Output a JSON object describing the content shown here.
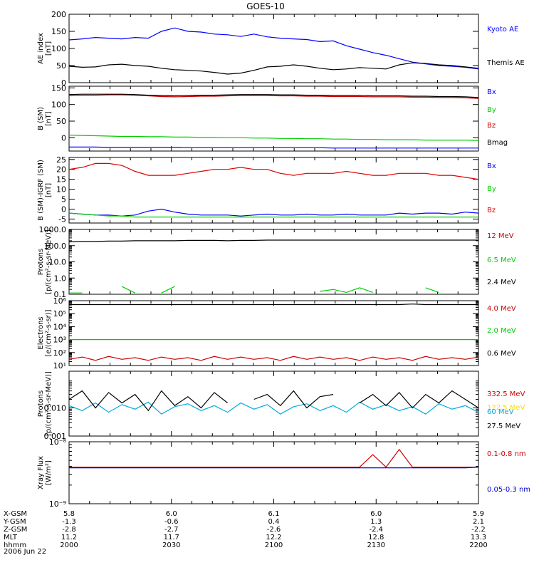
{
  "title": "GOES-10",
  "chart_data": [
    {
      "type": "line",
      "ylabel": [
        "AE index",
        "[nT]"
      ],
      "ylim": [
        0,
        200
      ],
      "ytick_values": [
        0,
        50,
        100,
        150,
        200
      ],
      "ytick_labels": [
        "0",
        "50",
        "100",
        "150",
        "200"
      ],
      "series": [
        {
          "name": "Kyoto AE",
          "color": "#0000ff",
          "values": [
            125,
            128,
            132,
            130,
            128,
            132,
            130,
            150,
            160,
            150,
            148,
            142,
            140,
            135,
            142,
            134,
            130,
            128,
            126,
            120,
            122,
            108,
            98,
            88,
            80,
            70,
            60,
            55,
            50,
            48,
            45,
            40
          ]
        },
        {
          "name": "Themis AE",
          "color": "#000000",
          "values": [
            48,
            45,
            46,
            52,
            54,
            50,
            48,
            42,
            38,
            36,
            34,
            30,
            25,
            28,
            36,
            46,
            48,
            52,
            48,
            42,
            38,
            40,
            44,
            42,
            40,
            52,
            58,
            56,
            52,
            50,
            46,
            42
          ]
        }
      ]
    },
    {
      "type": "line",
      "ylabel": [
        "B (SM)",
        "[nT]"
      ],
      "ylim": [
        -40,
        155
      ],
      "ytick_values": [
        0,
        50,
        100,
        150
      ],
      "ytick_labels": [
        "0",
        "50",
        "100",
        "150"
      ],
      "minor_ticks": [
        -25
      ],
      "series": [
        {
          "name": "Bx",
          "color": "#0000ff",
          "values": [
            -28,
            -28,
            -28,
            -29,
            -29,
            -29,
            -29,
            -29,
            -29,
            -30,
            -30,
            -30,
            -30,
            -30,
            -30,
            -30,
            -30,
            -30,
            -30,
            -30,
            -31,
            -31,
            -31,
            -31,
            -31,
            -31,
            -31,
            -31,
            -31,
            -31,
            -31,
            -31
          ]
        },
        {
          "name": "By",
          "color": "#00cc00",
          "values": [
            8,
            7,
            6,
            5,
            4,
            4,
            3,
            3,
            2,
            2,
            1,
            1,
            0,
            0,
            -1,
            -1,
            -2,
            -2,
            -3,
            -3,
            -4,
            -4,
            -5,
            -5,
            -6,
            -6,
            -6,
            -7,
            -7,
            -7,
            -7,
            -8
          ]
        },
        {
          "name": "Bz",
          "color": "#cc0000",
          "values": [
            127,
            128,
            128,
            129,
            129,
            128,
            126,
            124,
            123,
            124,
            125,
            125,
            126,
            127,
            127,
            127,
            126,
            126,
            125,
            125,
            124,
            124,
            124,
            123,
            123,
            123,
            122,
            122,
            121,
            121,
            120,
            118
          ]
        },
        {
          "name": "Bmag",
          "color": "#000000",
          "values": [
            130,
            131,
            131,
            131,
            131,
            130,
            128,
            127,
            126,
            127,
            128,
            128,
            129,
            130,
            130,
            130,
            129,
            129,
            128,
            128,
            127,
            127,
            127,
            126,
            126,
            126,
            125,
            125,
            124,
            124,
            123,
            121
          ]
        }
      ]
    },
    {
      "type": "line",
      "ylabel": [
        "B (SM)-IGRF (SM)",
        "[nT]"
      ],
      "ylim": [
        -7,
        26
      ],
      "ytick_values": [
        -5,
        0,
        5,
        10,
        15,
        20,
        25
      ],
      "ytick_labels": [
        "-5",
        "0",
        "5",
        "10",
        "15",
        "20",
        "25"
      ],
      "series": [
        {
          "name": "Bx",
          "color": "#0000ff",
          "values": [
            -2,
            -2.5,
            -3,
            -3,
            -3.5,
            -3,
            -1,
            0,
            -1.5,
            -2.5,
            -3,
            -3,
            -3,
            -3.5,
            -3,
            -2.5,
            -3,
            -3,
            -2.5,
            -3,
            -3,
            -2.5,
            -3,
            -3,
            -3,
            -2,
            -2.5,
            -2,
            -2,
            -2.5,
            -1.5,
            -2
          ]
        },
        {
          "name": "By",
          "color": "#00cc00",
          "values": [
            -2,
            -2.5,
            -3,
            -3.5,
            -3.5,
            -4,
            -4,
            -4,
            -4,
            -4,
            -4,
            -4,
            -4,
            -4,
            -4,
            -4,
            -4,
            -4,
            -4,
            -4,
            -4,
            -4,
            -4,
            -4,
            -4,
            -4,
            -4,
            -4,
            -4,
            -4,
            -4,
            -4
          ]
        },
        {
          "name": "Bz",
          "color": "#dd0000",
          "values": [
            20,
            21,
            23,
            23,
            22,
            19,
            17,
            17,
            17,
            18,
            19,
            20,
            20,
            21,
            20,
            20,
            18,
            17,
            18,
            18,
            18,
            19,
            18,
            17,
            17,
            18,
            18,
            18,
            17,
            17,
            16,
            15
          ]
        }
      ]
    },
    {
      "type": "line",
      "ylabel": [
        "Protons",
        "[p/(cm²-s-sr-MeV)]"
      ],
      "yscale": "log",
      "ylim": [
        0.1,
        1000
      ],
      "ytick_values": [
        0.1,
        1,
        10,
        100,
        1000
      ],
      "ytick_labels": [
        "0.1",
        "1.0",
        "10.0",
        "100.0",
        "1000.0"
      ],
      "series": [
        {
          "name": "12 MeV",
          "color": "#cc0000",
          "values": []
        },
        {
          "name": "6.5 MeV",
          "color": "#00cc00",
          "values": [
            0.12,
            0.12,
            null,
            null,
            0.3,
            0.12,
            null,
            0.12,
            0.3,
            null,
            null,
            null,
            null,
            0.15,
            null,
            null,
            null,
            null,
            null,
            0.15,
            0.2,
            0.13,
            0.25,
            0.13,
            null,
            0.13,
            null,
            0.25,
            0.13,
            null,
            null,
            null
          ]
        },
        {
          "name": "2.4 MeV",
          "color": "#000000",
          "values": [
            170,
            180,
            180,
            190,
            190,
            200,
            200,
            200,
            200,
            210,
            210,
            210,
            200,
            210,
            210,
            220,
            220,
            220,
            220,
            220,
            220,
            220,
            220,
            220,
            220,
            220,
            220,
            220,
            220,
            220,
            220,
            220
          ]
        }
      ]
    },
    {
      "type": "line",
      "ylabel": [
        "Electrons",
        "[e/(cm²-s-sr)]"
      ],
      "yscale": "log",
      "ylim": [
        10,
        1000000
      ],
      "ytick_values": [
        10,
        100,
        1000,
        10000,
        100000,
        1000000
      ],
      "ytick_labels": [
        "10¹",
        "10²",
        "10³",
        "10⁴",
        "10⁵",
        "10⁶"
      ],
      "series": [
        {
          "name": "4.0 MeV",
          "color": "#cc0000",
          "values": [
            30,
            45,
            25,
            50,
            30,
            40,
            25,
            45,
            30,
            40,
            25,
            50,
            30,
            45,
            30,
            40,
            25,
            50,
            30,
            45,
            30,
            40,
            25,
            45,
            30,
            40,
            25,
            50,
            30,
            40,
            30,
            45
          ]
        },
        {
          "name": "2.0 MeV",
          "color": "#00cc00",
          "values": [
            1000,
            1000,
            1000,
            1000,
            1000,
            1000,
            1000,
            1000,
            1000,
            1000,
            1000,
            1000,
            1000,
            1000,
            1000,
            1000,
            1000,
            1000,
            1000,
            1000,
            1000,
            1000,
            1000,
            1000,
            1000,
            1000,
            1000,
            1000,
            1000,
            1000,
            1000,
            1000
          ]
        },
        {
          "name": "0.6 MeV",
          "color": "#000000",
          "values": [
            500000,
            500000,
            500000,
            500000,
            500000,
            500000,
            500000,
            500000,
            500000,
            500000,
            500000,
            500000,
            500000,
            500000,
            500000,
            500000,
            500000,
            500000,
            500000,
            500000,
            500000,
            500000,
            500000,
            500000,
            500000,
            500000,
            550000,
            500000,
            500000,
            500000,
            500000,
            500000
          ]
        }
      ]
    },
    {
      "type": "line",
      "ylabel": [
        "Protons",
        "[p/(cm²-s-sr-MeV)]"
      ],
      "yscale": "log",
      "ylim": [
        0.001,
        0.2
      ],
      "ytick_values": [
        0.001,
        0.01
      ],
      "ytick_labels": [
        "0.001",
        "0.010"
      ],
      "series": [
        {
          "name": "332.5 MeV",
          "color": "#cc0000",
          "values": []
        },
        {
          "name": "122.5 MeV",
          "color": "#ffdd00",
          "values": []
        },
        {
          "name": "60 MeV",
          "color": "#00aadd",
          "values": [
            0.012,
            0.008,
            0.015,
            0.007,
            0.013,
            0.009,
            0.016,
            0.006,
            0.011,
            0.014,
            0.008,
            0.012,
            0.007,
            0.015,
            0.009,
            0.013,
            0.006,
            0.011,
            0.014,
            0.008,
            0.012,
            0.007,
            0.016,
            0.009,
            0.013,
            0.008,
            0.011,
            0.006,
            0.014,
            0.009,
            0.012,
            0.007
          ]
        },
        {
          "name": "27.5 MeV",
          "color": "#000000",
          "values": [
            0.02,
            0.04,
            0.01,
            0.035,
            0.015,
            0.03,
            0.008,
            0.04,
            0.012,
            0.025,
            0.01,
            0.035,
            0.015,
            null,
            0.02,
            0.03,
            0.012,
            0.04,
            0.01,
            0.025,
            0.03,
            null,
            0.015,
            0.03,
            0.012,
            0.035,
            0.01,
            0.03,
            0.015,
            0.04,
            0.02,
            0.01
          ]
        }
      ]
    },
    {
      "type": "line",
      "ylabel": [
        "Xray Flux",
        "[W/m²]"
      ],
      "yscale": "log",
      "ylim": [
        1e-09,
        1e-08
      ],
      "ytick_values": [
        1e-09,
        1e-08
      ],
      "ytick_labels": [
        "10⁻⁹",
        "10⁻⁸"
      ],
      "series": [
        {
          "name": "0.1-0.8 nm",
          "color": "#cc0000",
          "values": [
            3.9e-09,
            3.9e-09,
            3.9e-09,
            3.9e-09,
            3.9e-09,
            3.9e-09,
            3.9e-09,
            3.9e-09,
            3.9e-09,
            3.9e-09,
            3.9e-09,
            3.9e-09,
            3.9e-09,
            3.9e-09,
            3.9e-09,
            3.9e-09,
            3.9e-09,
            3.9e-09,
            3.9e-09,
            3.9e-09,
            3.9e-09,
            3.9e-09,
            3.9e-09,
            6.2e-09,
            3.9e-09,
            7.5e-09,
            3.9e-09,
            3.9e-09,
            3.9e-09,
            3.9e-09,
            3.9e-09,
            3.9e-09
          ]
        },
        {
          "name": "0.05-0.3 nm",
          "color": "#0000cc",
          "values": [
            3.8e-09,
            3.8e-09,
            3.8e-09,
            3.8e-09,
            3.8e-09,
            3.8e-09,
            3.8e-09,
            3.8e-09,
            3.8e-09,
            3.8e-09,
            3.8e-09,
            3.8e-09,
            3.8e-09,
            3.8e-09,
            3.8e-09,
            3.8e-09,
            3.8e-09,
            3.8e-09,
            3.8e-09,
            3.8e-09,
            3.8e-09,
            3.8e-09,
            3.8e-09,
            3.8e-09,
            3.8e-09,
            3.8e-09,
            3.8e-09,
            3.8e-09,
            3.8e-09,
            3.8e-09,
            3.8e-09,
            3.9e-09
          ]
        }
      ]
    }
  ],
  "x_axis": {
    "row_labels": [
      "X-GSM",
      "Y-GSM",
      "Z-GSM",
      "MLT",
      "hhmm",
      "2006 Jun 22"
    ],
    "columns": [
      [
        "5.8",
        "-1.3",
        "-2.8",
        "11.2",
        "2000"
      ],
      [
        "6.0",
        "-0.6",
        "-2.7",
        "11.7",
        "2030"
      ],
      [
        "6.1",
        "0.4",
        "-2.6",
        "12.2",
        "2100"
      ],
      [
        "6.0",
        "1.3",
        "-2.4",
        "12.8",
        "2130"
      ],
      [
        "5.9",
        "2.1",
        "-2.2",
        "13.3",
        "2200"
      ]
    ]
  }
}
